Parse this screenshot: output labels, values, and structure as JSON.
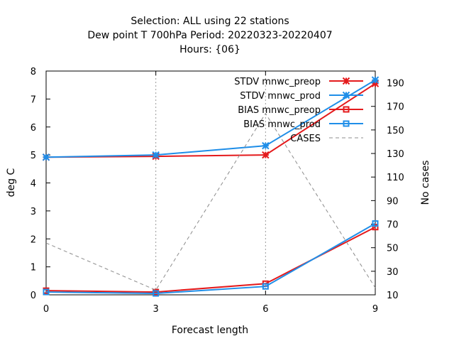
{
  "chart_data": {
    "type": "line",
    "title_lines": [
      "Selection: ALL using    22 stations",
      "Dew point T 700hPa   Period: 20220323-20220407",
      "Hours: {06}"
    ],
    "xlabel": "Forecast length",
    "ylabel": "deg C",
    "y2label": "No cases",
    "x": [
      0,
      3,
      6,
      9
    ],
    "xlim": [
      0,
      9
    ],
    "ylim": [
      0,
      8
    ],
    "y2lim": [
      10,
      200
    ],
    "x_ticks": [
      "0",
      "3",
      "6",
      "9"
    ],
    "y_ticks": [
      "0",
      "1",
      "2",
      "3",
      "4",
      "5",
      "6",
      "7",
      "8"
    ],
    "y2_ticks": [
      "10",
      "30",
      "50",
      "70",
      "90",
      "110",
      "130",
      "150",
      "170",
      "190"
    ],
    "grid": "vertical dotted at x ticks",
    "legend_position": "top-right",
    "series": [
      {
        "name": "STDV mnwc_preop",
        "axis": "left",
        "marker": "star",
        "color": "#e41a1c",
        "dash": "solid",
        "values": [
          4.92,
          4.95,
          5.0,
          7.55
        ]
      },
      {
        "name": "STDV mnwc_prod",
        "axis": "left",
        "marker": "star",
        "color": "#1f8ee8",
        "dash": "solid",
        "values": [
          4.92,
          5.0,
          5.33,
          7.68
        ]
      },
      {
        "name": "BIAS mnwc_preop",
        "axis": "left",
        "marker": "square",
        "color": "#e41a1c",
        "dash": "solid",
        "values": [
          0.15,
          0.1,
          0.4,
          2.42
        ]
      },
      {
        "name": "BIAS mnwc_prod",
        "axis": "left",
        "marker": "square",
        "color": "#1f8ee8",
        "dash": "solid",
        "values": [
          0.1,
          0.05,
          0.3,
          2.55
        ]
      },
      {
        "name": "CASES",
        "axis": "right",
        "marker": "none",
        "color": "#8c8c8c",
        "dash": "dashed",
        "values": [
          54,
          14,
          164,
          16
        ]
      }
    ]
  }
}
